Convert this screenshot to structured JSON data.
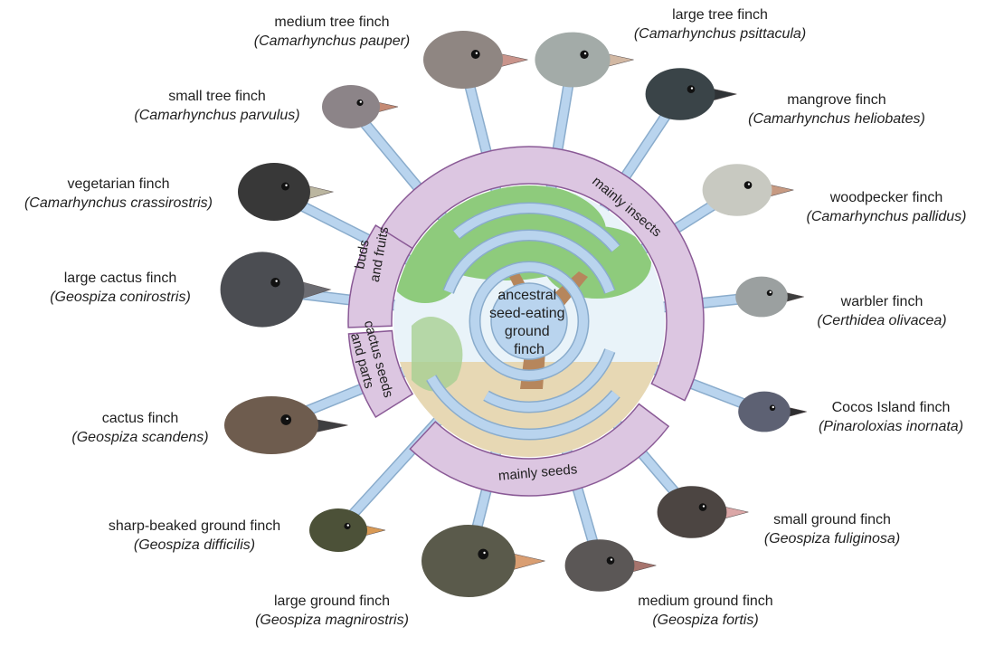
{
  "center_label": [
    "ancestral",
    "seed-eating",
    "ground",
    "finch"
  ],
  "diet_groups": {
    "insects": "mainly insects",
    "buds": [
      "buds",
      "and fruits"
    ],
    "cactus": [
      "cactus seeds",
      "and parts"
    ],
    "seeds": "mainly seeds"
  },
  "finches": [
    {
      "id": "medium-tree-finch",
      "common": "medium tree finch",
      "scientific": "(Camarhynchus pauper)",
      "color": "#8f8682",
      "beak": "#c9948b"
    },
    {
      "id": "large-tree-finch",
      "common": "large tree finch",
      "scientific": "(Camarhynchus psittacula)",
      "color": "#a3aba8",
      "beak": "#d2b8a3"
    },
    {
      "id": "mangrove-finch",
      "common": "mangrove finch",
      "scientific": "(Camarhynchus heliobates)",
      "color": "#3a4448",
      "beak": "#2f3336"
    },
    {
      "id": "woodpecker-finch",
      "common": "woodpecker finch",
      "scientific": "(Camarhynchus pallidus)",
      "color": "#c8c9c1",
      "beak": "#c79a82"
    },
    {
      "id": "warbler-finch",
      "common": "warbler finch",
      "scientific": "(Certhidea olivacea)",
      "color": "#9ba0a0",
      "beak": "#3d3d3d"
    },
    {
      "id": "cocos-island-finch",
      "common": "Cocos Island finch",
      "scientific": "(Pinaroloxias inornata)",
      "color": "#5d6173",
      "beak": "#2e2e30"
    },
    {
      "id": "small-ground-finch",
      "common": "small ground finch",
      "scientific": "(Geospiza fuliginosa)",
      "color": "#4c4542",
      "beak": "#dba7a7"
    },
    {
      "id": "medium-ground-finch",
      "common": "medium ground finch",
      "scientific": "(Geospiza fortis)",
      "color": "#5b5756",
      "beak": "#a6746d"
    },
    {
      "id": "large-ground-finch",
      "common": "large ground finch",
      "scientific": "(Geospiza magnirostris)",
      "color": "#5a5a4b",
      "beak": "#d99e72"
    },
    {
      "id": "sharp-beaked-ground-finch",
      "common": "sharp-beaked ground finch",
      "scientific": "(Geospiza difficilis)",
      "color": "#4c5138",
      "beak": "#d99a55"
    },
    {
      "id": "cactus-finch",
      "common": "cactus finch",
      "scientific": "(Geospiza scandens)",
      "color": "#6e5c4e",
      "beak": "#3e3e40"
    },
    {
      "id": "large-cactus-finch",
      "common": "large cactus finch",
      "scientific": "(Geospiza conirostris)",
      "color": "#4b4d52",
      "beak": "#6c6c72"
    },
    {
      "id": "vegetarian-finch",
      "common": "vegetarian finch",
      "scientific": "(Camarhynchus crassirostris)",
      "color": "#383838",
      "beak": "#bbb6a0"
    },
    {
      "id": "small-tree-finch",
      "common": "small tree finch",
      "scientific": "(Camarhynchus parvulus)",
      "color": "#8c8488",
      "beak": "#c48a74"
    }
  ],
  "colors": {
    "ring_fill": "#dcc6e1",
    "ring_stroke": "#8a5a96",
    "branch_fill": "#b9d4ee",
    "branch_stroke": "#8aaccc",
    "center_fill": "#b9d4ee",
    "tree_green": "#8ecb7c",
    "trunk": "#b6865c",
    "ground": "#e7d8b4",
    "sky": "#e9f3f9"
  }
}
